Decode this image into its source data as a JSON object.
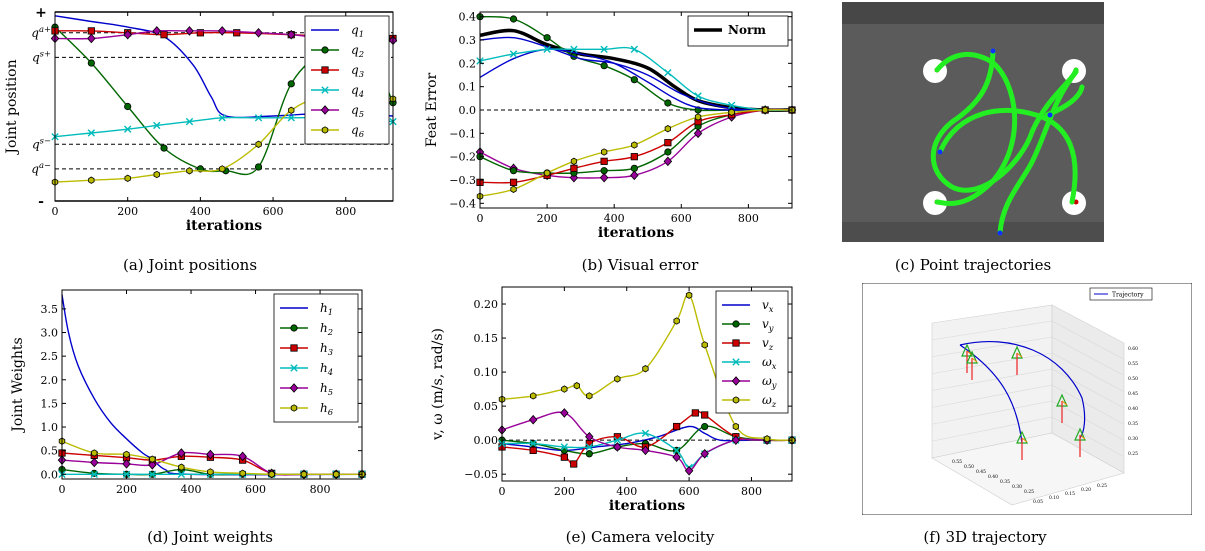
{
  "chart_data": [
    {
      "id": "a",
      "type": "line",
      "caption": "(a) Joint positions",
      "ylabel": "Joint position",
      "xlabel": "iterations",
      "xlim": [
        0,
        930
      ],
      "ylim": [
        0,
        1
      ],
      "xticks": [
        0,
        200,
        400,
        600,
        800
      ],
      "ytick_labels": [
        {
          "y": 1.0,
          "label": "+"
        },
        {
          "y": 0.89,
          "label": "q^{a+}"
        },
        {
          "y": 0.76,
          "label": "q^{s+}"
        },
        {
          "y": 0.3,
          "label": "q^{s−}"
        },
        {
          "y": 0.17,
          "label": "q^{a−}"
        },
        {
          "y": 0.0,
          "label": "-"
        }
      ],
      "hlines": [
        {
          "y": 1.0,
          "style": "solid"
        },
        {
          "y": 0.89,
          "style": "dashed"
        },
        {
          "y": 0.76,
          "style": "dashed"
        },
        {
          "y": 0.3,
          "style": "dashed"
        },
        {
          "y": 0.17,
          "style": "dashed"
        },
        {
          "y": 0.0,
          "style": "solid"
        }
      ],
      "legend": "top-right",
      "series": [
        {
          "name": "q1",
          "color": "#0000cc",
          "marker": "none",
          "x": [
            0,
            100,
            200,
            300,
            380,
            430,
            470,
            600,
            700,
            800,
            930
          ],
          "y": [
            0.98,
            0.95,
            0.92,
            0.87,
            0.72,
            0.55,
            0.45,
            0.45,
            0.46,
            0.46,
            0.45
          ]
        },
        {
          "name": "q2",
          "color": "#006600",
          "marker": "circle",
          "x": [
            0,
            100,
            200,
            300,
            400,
            470,
            560,
            650,
            750,
            850,
            930
          ],
          "y": [
            0.92,
            0.73,
            0.5,
            0.28,
            0.17,
            0.16,
            0.18,
            0.62,
            0.8,
            0.84,
            0.52
          ]
        },
        {
          "name": "q3",
          "color": "#cc0000",
          "marker": "square",
          "x": [
            0,
            100,
            200,
            300,
            400,
            500,
            650,
            750,
            850,
            930
          ],
          "y": [
            0.9,
            0.9,
            0.89,
            0.88,
            0.89,
            0.89,
            0.88,
            0.87,
            0.86,
            0.86
          ]
        },
        {
          "name": "q4",
          "color": "#00bbbb",
          "marker": "x",
          "x": [
            0,
            100,
            200,
            280,
            370,
            460,
            560,
            650,
            750,
            850,
            930
          ],
          "y": [
            0.34,
            0.36,
            0.38,
            0.4,
            0.42,
            0.44,
            0.44,
            0.44,
            0.44,
            0.43,
            0.42
          ]
        },
        {
          "name": "q5",
          "color": "#990099",
          "marker": "diamond",
          "x": [
            0,
            100,
            200,
            280,
            370,
            460,
            560,
            650,
            750,
            850,
            930
          ],
          "y": [
            0.86,
            0.86,
            0.88,
            0.9,
            0.9,
            0.9,
            0.89,
            0.88,
            0.86,
            0.86,
            0.85
          ]
        },
        {
          "name": "q6",
          "color": "#bbbb00",
          "marker": "hexagon",
          "x": [
            0,
            100,
            200,
            280,
            370,
            460,
            560,
            650,
            750,
            850,
            930
          ],
          "y": [
            0.1,
            0.11,
            0.12,
            0.14,
            0.16,
            0.17,
            0.3,
            0.48,
            0.56,
            0.55,
            0.54
          ]
        }
      ]
    },
    {
      "id": "b",
      "type": "line",
      "caption": "(b) Visual error",
      "ylabel": "Feat Error",
      "xlabel": "iterations",
      "xlim": [
        0,
        930
      ],
      "ylim": [
        -0.42,
        0.42
      ],
      "xticks": [
        0,
        200,
        400,
        600,
        800
      ],
      "yticks": [
        -0.4,
        -0.3,
        -0.2,
        -0.1,
        0.0,
        0.1,
        0.2,
        0.3,
        0.4
      ],
      "hlines": [
        {
          "y": 0.0,
          "style": "dashed"
        }
      ],
      "legend": "top-right",
      "series": [
        {
          "name": "Norm",
          "color": "#000000",
          "marker": "none",
          "width": 3.5,
          "x": [
            0,
            100,
            200,
            300,
            400,
            500,
            580,
            650,
            750,
            850,
            930
          ],
          "y": [
            0.32,
            0.34,
            0.28,
            0.24,
            0.22,
            0.18,
            0.1,
            0.04,
            0.01,
            0.0,
            0.0
          ]
        },
        {
          "name": "",
          "color": "#006600",
          "marker": "circle",
          "x": [
            0,
            100,
            200,
            280,
            370,
            460,
            560,
            650,
            750,
            850,
            930
          ],
          "y": [
            0.4,
            0.39,
            0.31,
            0.23,
            0.19,
            0.13,
            0.03,
            0.0,
            0.0,
            0.0,
            0.0
          ]
        },
        {
          "name": "",
          "color": "#0000cc",
          "marker": "none",
          "x": [
            0,
            100,
            200,
            300,
            400,
            500,
            580,
            650,
            750,
            850,
            930
          ],
          "y": [
            0.14,
            0.22,
            0.26,
            0.24,
            0.2,
            0.12,
            0.05,
            0.01,
            0.0,
            0.0,
            0.0
          ]
        },
        {
          "name": "",
          "color": "#0000cc",
          "marker": "none",
          "x": [
            0,
            100,
            200,
            300,
            400,
            500,
            600,
            700,
            800,
            930
          ],
          "y": [
            0.3,
            0.31,
            0.27,
            0.22,
            0.2,
            0.15,
            0.07,
            0.02,
            0.0,
            0.0
          ]
        },
        {
          "name": "",
          "color": "#00bbbb",
          "marker": "x",
          "x": [
            0,
            100,
            200,
            280,
            370,
            460,
            560,
            650,
            750,
            850,
            930
          ],
          "y": [
            0.21,
            0.24,
            0.26,
            0.26,
            0.26,
            0.26,
            0.16,
            0.06,
            0.02,
            0.0,
            0.0
          ]
        },
        {
          "name": "",
          "color": "#990099",
          "marker": "diamond",
          "x": [
            0,
            100,
            200,
            280,
            370,
            460,
            560,
            650,
            750,
            850,
            930
          ],
          "y": [
            -0.18,
            -0.25,
            -0.28,
            -0.29,
            -0.29,
            -0.28,
            -0.22,
            -0.1,
            -0.03,
            0.0,
            0.0
          ]
        },
        {
          "name": "",
          "color": "#006600",
          "marker": "circle",
          "x": [
            0,
            100,
            200,
            280,
            370,
            460,
            560,
            650,
            750,
            850,
            930
          ],
          "y": [
            -0.2,
            -0.26,
            -0.27,
            -0.27,
            -0.26,
            -0.25,
            -0.18,
            -0.07,
            -0.02,
            0.0,
            0.0
          ]
        },
        {
          "name": "",
          "color": "#cc0000",
          "marker": "square",
          "x": [
            0,
            100,
            200,
            280,
            370,
            460,
            560,
            650,
            750,
            850,
            930
          ],
          "y": [
            -0.31,
            -0.31,
            -0.28,
            -0.25,
            -0.22,
            -0.2,
            -0.14,
            -0.05,
            -0.02,
            0.0,
            0.0
          ]
        },
        {
          "name": "",
          "color": "#bbbb00",
          "marker": "hexagon",
          "x": [
            0,
            100,
            200,
            280,
            370,
            460,
            560,
            650,
            750,
            850,
            930
          ],
          "y": [
            -0.37,
            -0.34,
            -0.27,
            -0.22,
            -0.18,
            -0.15,
            -0.08,
            -0.03,
            -0.01,
            0.0,
            0.0
          ]
        }
      ]
    },
    {
      "id": "c",
      "type": "image",
      "caption": "(c) Point trajectories"
    },
    {
      "id": "d",
      "type": "line",
      "caption": "(d) Joint weights",
      "ylabel": "Joint Weights",
      "xlabel": "",
      "xlim": [
        0,
        930
      ],
      "ylim": [
        -0.1,
        3.9
      ],
      "xticks": [
        0,
        200,
        400,
        600,
        800
      ],
      "yticks": [
        0.0,
        0.5,
        1.0,
        1.5,
        2.0,
        2.5,
        3.0,
        3.5
      ],
      "legend": "top-right",
      "series": [
        {
          "name": "h1",
          "color": "#0000cc",
          "marker": "none",
          "x": [
            0,
            20,
            50,
            100,
            150,
            200,
            250,
            280,
            320,
            400,
            930
          ],
          "y": [
            3.8,
            3.0,
            2.3,
            1.6,
            1.1,
            0.75,
            0.45,
            0.32,
            0.1,
            0.0,
            0.0
          ]
        },
        {
          "name": "h2",
          "color": "#006600",
          "marker": "circle",
          "x": [
            0,
            100,
            200,
            280,
            370,
            460,
            560,
            650,
            750,
            850,
            930
          ],
          "y": [
            0.1,
            0.02,
            0.0,
            0.0,
            0.1,
            0.0,
            0.0,
            0.0,
            0.0,
            0.0,
            0.0
          ]
        },
        {
          "name": "h3",
          "color": "#cc0000",
          "marker": "square",
          "x": [
            0,
            100,
            200,
            280,
            370,
            460,
            560,
            650,
            750,
            850,
            930
          ],
          "y": [
            0.45,
            0.4,
            0.35,
            0.3,
            0.38,
            0.36,
            0.3,
            0.02,
            0.0,
            0.0,
            0.0
          ]
        },
        {
          "name": "h4",
          "color": "#00bbbb",
          "marker": "x",
          "x": [
            0,
            100,
            200,
            280,
            370,
            460,
            560,
            650,
            750,
            850,
            930
          ],
          "y": [
            0.0,
            0.0,
            0.0,
            0.0,
            0.0,
            0.0,
            0.0,
            0.0,
            0.0,
            0.0,
            0.0
          ]
        },
        {
          "name": "h5",
          "color": "#990099",
          "marker": "diamond",
          "x": [
            0,
            100,
            200,
            280,
            370,
            460,
            560,
            650,
            750,
            850,
            930
          ],
          "y": [
            0.3,
            0.25,
            0.22,
            0.2,
            0.45,
            0.42,
            0.38,
            0.02,
            0.0,
            0.0,
            0.0
          ]
        },
        {
          "name": "h6",
          "color": "#bbbb00",
          "marker": "hexagon",
          "x": [
            0,
            100,
            200,
            280,
            370,
            460,
            560,
            650,
            750,
            850,
            930
          ],
          "y": [
            0.7,
            0.45,
            0.42,
            0.32,
            0.15,
            0.05,
            0.02,
            0.0,
            0.0,
            0.0,
            0.0
          ]
        }
      ]
    },
    {
      "id": "e",
      "type": "line",
      "caption": "(e) Camera velocity",
      "ylabel": "v, ω (m/s, rad/s)",
      "xlabel": "iterations",
      "xlim": [
        0,
        930
      ],
      "ylim": [
        -0.06,
        0.225
      ],
      "xticks": [
        0,
        200,
        400,
        600,
        800
      ],
      "yticks": [
        -0.05,
        0.0,
        0.05,
        0.1,
        0.15,
        0.2
      ],
      "ytick_labels": [
        "−0.05",
        "0.00",
        "0.05",
        "0.10",
        "0.15",
        "0.20"
      ],
      "hlines": [
        {
          "y": 0.0,
          "style": "dashed"
        }
      ],
      "legend": "top-right",
      "series": [
        {
          "name": "v_x",
          "color": "#0000cc",
          "marker": "none",
          "x": [
            0,
            100,
            200,
            300,
            400,
            500,
            600,
            650,
            700,
            800,
            930
          ],
          "y": [
            -0.005,
            -0.01,
            -0.015,
            -0.01,
            -0.005,
            0.005,
            0.02,
            0.01,
            0.0,
            0.0,
            0.0
          ]
        },
        {
          "name": "v_y",
          "color": "#006600",
          "marker": "circle",
          "x": [
            0,
            100,
            200,
            280,
            370,
            460,
            560,
            650,
            750,
            850,
            930
          ],
          "y": [
            0.0,
            -0.005,
            -0.015,
            -0.02,
            -0.01,
            -0.005,
            -0.015,
            0.02,
            0.005,
            0.0,
            0.0
          ]
        },
        {
          "name": "v_z",
          "color": "#cc0000",
          "marker": "square",
          "x": [
            0,
            100,
            200,
            230,
            280,
            370,
            460,
            560,
            620,
            650,
            750,
            850,
            930
          ],
          "y": [
            -0.01,
            -0.015,
            -0.025,
            -0.035,
            -0.005,
            0.005,
            -0.01,
            0.02,
            0.04,
            0.037,
            0.005,
            0.0,
            0.0
          ]
        },
        {
          "name": "ω_x",
          "color": "#00bbbb",
          "marker": "x",
          "x": [
            0,
            100,
            200,
            280,
            370,
            460,
            560,
            600,
            650,
            750,
            850,
            930
          ],
          "y": [
            -0.005,
            -0.005,
            -0.01,
            -0.01,
            0.0,
            0.01,
            -0.015,
            -0.04,
            -0.02,
            0.0,
            0.0,
            0.0
          ]
        },
        {
          "name": "ω_y",
          "color": "#990099",
          "marker": "diamond",
          "x": [
            0,
            100,
            200,
            280,
            370,
            460,
            560,
            600,
            650,
            750,
            850,
            930
          ],
          "y": [
            0.015,
            0.03,
            0.04,
            0.005,
            -0.01,
            -0.015,
            -0.025,
            -0.045,
            -0.02,
            0.0,
            0.0,
            0.0
          ]
        },
        {
          "name": "ω_z",
          "color": "#bbbb00",
          "marker": "hexagon",
          "x": [
            0,
            100,
            200,
            240,
            280,
            370,
            460,
            560,
            600,
            650,
            750,
            850,
            930
          ],
          "y": [
            0.06,
            0.065,
            0.075,
            0.08,
            0.065,
            0.09,
            0.105,
            0.175,
            0.213,
            0.14,
            0.02,
            0.002,
            0.0
          ]
        }
      ]
    },
    {
      "id": "f",
      "type": "line3d",
      "caption": "(f) 3D trajectory",
      "legend_label": "Trajectory",
      "z_tick_labels": [
        "0.60",
        "0.55",
        "0.50",
        "0.45",
        "0.40",
        "0.35",
        "0.30",
        "0.25"
      ],
      "x_tick_labels": [
        "0.55",
        "0.50",
        "0.45",
        "0.40",
        "0.35",
        "0.30",
        "0.25"
      ],
      "y_tick_labels": [
        "0.25",
        "0.20",
        "0.15",
        "0.10",
        "0.05"
      ]
    }
  ]
}
